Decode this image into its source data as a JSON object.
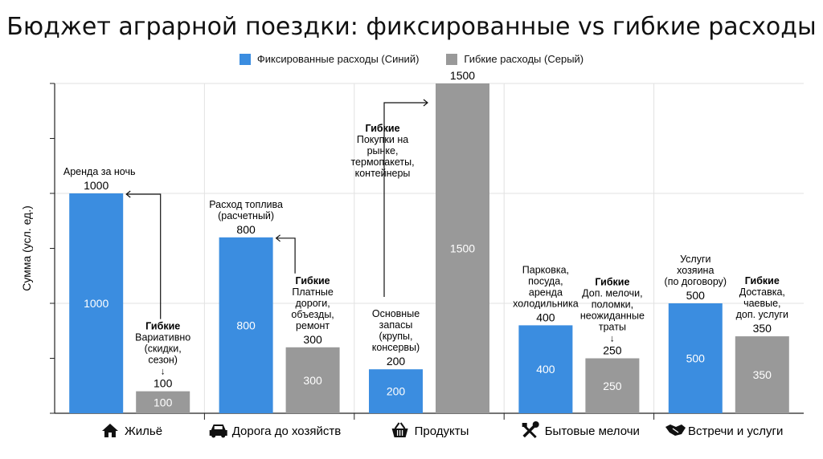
{
  "title": "Бюджет аграрной поездки: фиксированные vs гибкие расходы",
  "legend": {
    "fixed": "Фиксированные расходы (Синий)",
    "flexible": "Гибкие расходы (Серый)"
  },
  "colors": {
    "fixed": "#3b8de0",
    "flexible": "#999999",
    "grid": "#e2e2e2",
    "axis": "#222222"
  },
  "chart_data": {
    "type": "bar",
    "ylabel": "Сумма (усл. ед.)",
    "ylim": [
      0,
      1500
    ],
    "grid": true,
    "legend_position": "top-center",
    "categories": [
      "Жильё",
      "Дорога до хозяйств",
      "Продукты",
      "Бытовые мелочи",
      "Встречи и услуги"
    ],
    "category_icons": [
      "house-icon",
      "car-icon",
      "basket-icon",
      "tools-icon",
      "handshake-icon"
    ],
    "series": [
      {
        "name": "Фиксированные расходы (Синий)",
        "values": [
          1000,
          800,
          200,
          400,
          500
        ]
      },
      {
        "name": "Гибкие расходы (Серый)",
        "values": [
          100,
          300,
          1500,
          250,
          350
        ]
      }
    ],
    "annotations": {
      "fixed": [
        [
          "Аренда за ночь"
        ],
        [
          "Расход топлива",
          "(расчетный)"
        ],
        [
          "Основные",
          "запасы",
          "(крупы,",
          "консервы)"
        ],
        [
          "Парковка,",
          "посуда,",
          "аренда",
          "холодильника"
        ],
        [
          "Услуги",
          "хозяина",
          "(по договору)"
        ]
      ],
      "flexible": [
        [
          "Гибкие",
          "Вариативно",
          "(скидки,",
          "сезон)"
        ],
        [
          "Гибкие",
          "Платные",
          "дороги,",
          "объезды,",
          "ремонт"
        ],
        [
          "Гибкие",
          "Покупки на",
          "рынке,",
          "термопакеты,",
          "контейнеры"
        ],
        [
          "Гибкие",
          "Доп. мелочи,",
          "поломки,",
          "неожиданные",
          "траты"
        ],
        [
          "Гибкие",
          "Доставка,",
          "чаевые,",
          "доп. услуги"
        ]
      ]
    }
  }
}
